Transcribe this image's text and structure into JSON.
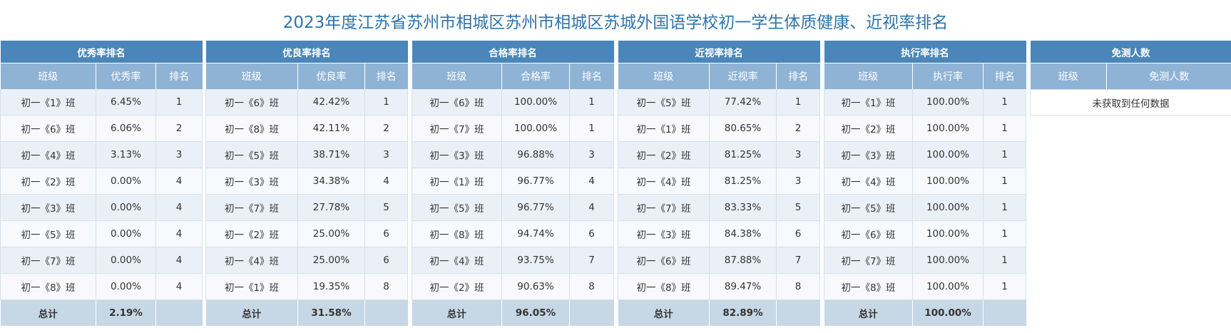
{
  "title": "2023年度江苏省苏州市相城区苏州市相城区苏城外国语学校初一学生体质健康、近视率排名",
  "headers": {
    "class": "班级",
    "rank": "排名",
    "total": "总计"
  },
  "panels": [
    {
      "caption": "优秀率排名",
      "value_header": "优秀率",
      "rows": [
        {
          "class": "初一《1》班",
          "value": "6.45%",
          "rank": "1"
        },
        {
          "class": "初一《6》班",
          "value": "6.06%",
          "rank": "2"
        },
        {
          "class": "初一《4》班",
          "value": "3.13%",
          "rank": "3"
        },
        {
          "class": "初一《2》班",
          "value": "0.00%",
          "rank": "4"
        },
        {
          "class": "初一《3》班",
          "value": "0.00%",
          "rank": "4"
        },
        {
          "class": "初一《5》班",
          "value": "0.00%",
          "rank": "4"
        },
        {
          "class": "初一《7》班",
          "value": "0.00%",
          "rank": "4"
        },
        {
          "class": "初一《8》班",
          "value": "0.00%",
          "rank": "4"
        }
      ],
      "total_value": "2.19%"
    },
    {
      "caption": "优良率排名",
      "value_header": "优良率",
      "rows": [
        {
          "class": "初一《6》班",
          "value": "42.42%",
          "rank": "1"
        },
        {
          "class": "初一《8》班",
          "value": "42.11%",
          "rank": "2"
        },
        {
          "class": "初一《5》班",
          "value": "38.71%",
          "rank": "3"
        },
        {
          "class": "初一《3》班",
          "value": "34.38%",
          "rank": "4"
        },
        {
          "class": "初一《7》班",
          "value": "27.78%",
          "rank": "5"
        },
        {
          "class": "初一《2》班",
          "value": "25.00%",
          "rank": "6"
        },
        {
          "class": "初一《4》班",
          "value": "25.00%",
          "rank": "6"
        },
        {
          "class": "初一《1》班",
          "value": "19.35%",
          "rank": "8"
        }
      ],
      "total_value": "31.58%"
    },
    {
      "caption": "合格率排名",
      "value_header": "合格率",
      "rows": [
        {
          "class": "初一《6》班",
          "value": "100.00%",
          "rank": "1"
        },
        {
          "class": "初一《7》班",
          "value": "100.00%",
          "rank": "1"
        },
        {
          "class": "初一《3》班",
          "value": "96.88%",
          "rank": "3"
        },
        {
          "class": "初一《1》班",
          "value": "96.77%",
          "rank": "4"
        },
        {
          "class": "初一《5》班",
          "value": "96.77%",
          "rank": "4"
        },
        {
          "class": "初一《8》班",
          "value": "94.74%",
          "rank": "6"
        },
        {
          "class": "初一《4》班",
          "value": "93.75%",
          "rank": "7"
        },
        {
          "class": "初一《2》班",
          "value": "90.63%",
          "rank": "8"
        }
      ],
      "total_value": "96.05%"
    },
    {
      "caption": "近视率排名",
      "value_header": "近视率",
      "rows": [
        {
          "class": "初一《5》班",
          "value": "77.42%",
          "rank": "1"
        },
        {
          "class": "初一《1》班",
          "value": "80.65%",
          "rank": "2"
        },
        {
          "class": "初一《2》班",
          "value": "81.25%",
          "rank": "3"
        },
        {
          "class": "初一《4》班",
          "value": "81.25%",
          "rank": "3"
        },
        {
          "class": "初一《7》班",
          "value": "83.33%",
          "rank": "5"
        },
        {
          "class": "初一《3》班",
          "value": "84.38%",
          "rank": "6"
        },
        {
          "class": "初一《6》班",
          "value": "87.88%",
          "rank": "7"
        },
        {
          "class": "初一《8》班",
          "value": "89.47%",
          "rank": "8"
        }
      ],
      "total_value": "82.89%"
    },
    {
      "caption": "执行率排名",
      "value_header": "执行率",
      "rows": [
        {
          "class": "初一《1》班",
          "value": "100.00%",
          "rank": "1"
        },
        {
          "class": "初一《2》班",
          "value": "100.00%",
          "rank": "1"
        },
        {
          "class": "初一《3》班",
          "value": "100.00%",
          "rank": "1"
        },
        {
          "class": "初一《4》班",
          "value": "100.00%",
          "rank": "1"
        },
        {
          "class": "初一《5》班",
          "value": "100.00%",
          "rank": "1"
        },
        {
          "class": "初一《6》班",
          "value": "100.00%",
          "rank": "1"
        },
        {
          "class": "初一《7》班",
          "value": "100.00%",
          "rank": "1"
        },
        {
          "class": "初一《8》班",
          "value": "100.00%",
          "rank": "1"
        }
      ],
      "total_value": "100.00%"
    }
  ],
  "exempt": {
    "caption": "免测人数",
    "col_class": "班级",
    "col_count": "免测人数",
    "empty_text": "未获取到任何数据"
  }
}
